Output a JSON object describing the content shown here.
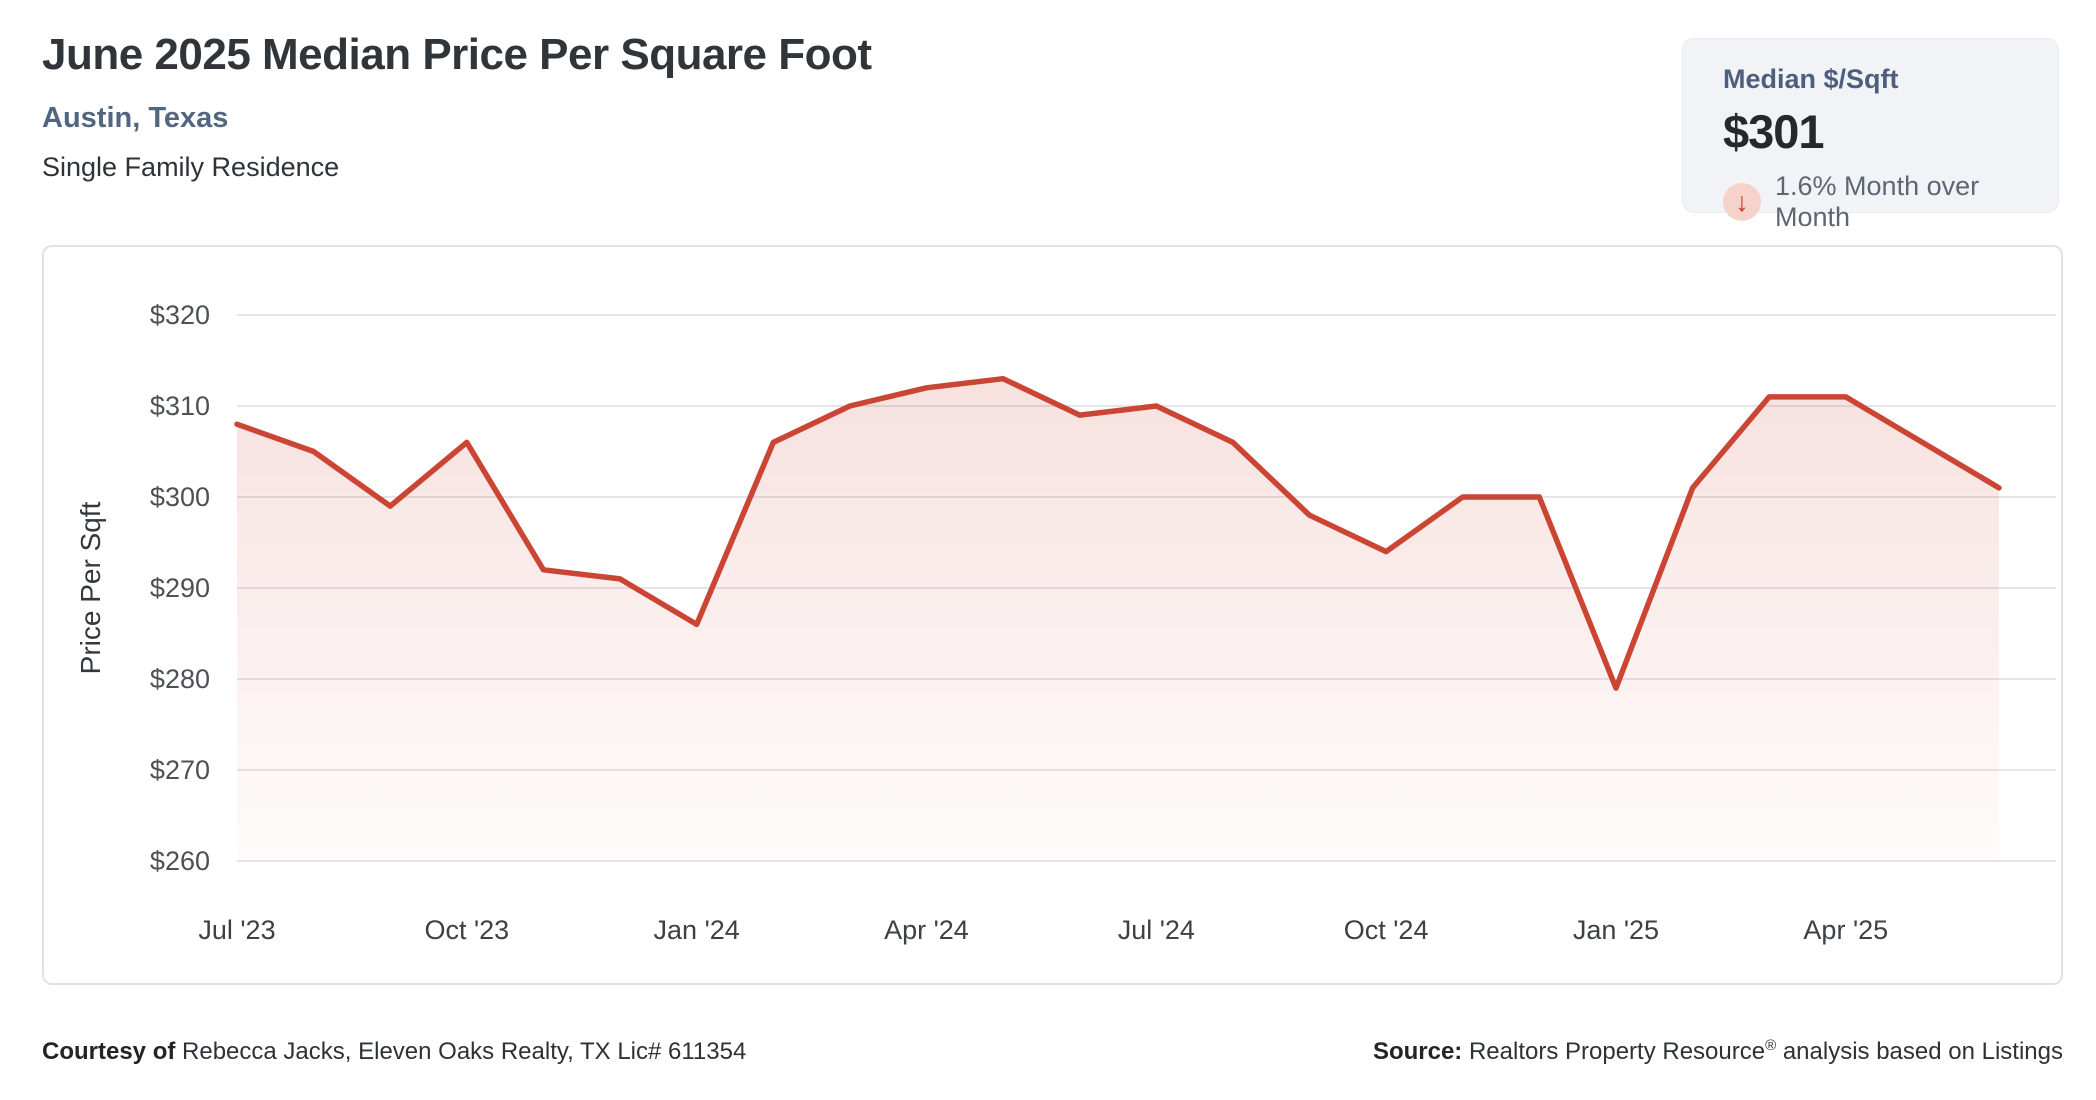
{
  "header": {
    "title": "June 2025 Median Price Per Square Foot",
    "location": "Austin, Texas",
    "property_type": "Single Family Residence"
  },
  "summary_card": {
    "label": "Median $/Sqft",
    "value": "$301",
    "change_direction": "down",
    "arrow_icon": "arrow-down",
    "arrow_glyph": "↓",
    "change_text": "1.6% Month over Month",
    "accent_color": "#c43d2a",
    "background_color": "#f1f3f7"
  },
  "chart_data": {
    "type": "area",
    "title": "June 2025 Median Price Per Square Foot",
    "series_name": "Median Price Per Sqft",
    "x": [
      "Jul '23",
      "Aug '23",
      "Sep '23",
      "Oct '23",
      "Nov '23",
      "Dec '23",
      "Jan '24",
      "Feb '24",
      "Mar '24",
      "Apr '24",
      "May '24",
      "Jun '24",
      "Jul '24",
      "Aug '24",
      "Sep '24",
      "Oct '24",
      "Nov '24",
      "Dec '24",
      "Jan '25",
      "Feb '25",
      "Mar '25",
      "Apr '25",
      "May '25",
      "Jun '25"
    ],
    "values": [
      308,
      305,
      299,
      306,
      292,
      291,
      286,
      306,
      310,
      312,
      313,
      309,
      310,
      306,
      298,
      294,
      300,
      300,
      279,
      301,
      311,
      311,
      306,
      301
    ],
    "ylabel": "Price Per Sqft",
    "ylim": [
      260,
      320
    ],
    "ytick_step": 10,
    "ytick_prefix": "$",
    "xtick_labels": [
      "Jul '23",
      "Oct '23",
      "Jan '24",
      "Apr '24",
      "Jul '24",
      "Oct '24",
      "Jan '25",
      "Apr '25"
    ],
    "xtick_indices": [
      0,
      3,
      6,
      9,
      12,
      15,
      18,
      21
    ],
    "grid": "horizontal",
    "legend": "none",
    "line_color": "#cb4534",
    "fill_gradient_top": "rgba(203,69,52,0.18)",
    "fill_gradient_mid": "rgba(203,69,52,0.08)",
    "fill_gradient_bottom": "rgba(203,69,52,0.02)",
    "gridline_color": "#e4e5e9",
    "tick_color": "#3c4146",
    "axis_title_color": "#33383d"
  },
  "footer": {
    "courtesy_label": "Courtesy of",
    "courtesy_text": " Rebecca Jacks, Eleven Oaks Realty, TX Lic# 611354",
    "source_label": "Source:",
    "source_name": " Realtors Property Resource",
    "source_reg": "®",
    "source_rest": " analysis based on Listings"
  }
}
